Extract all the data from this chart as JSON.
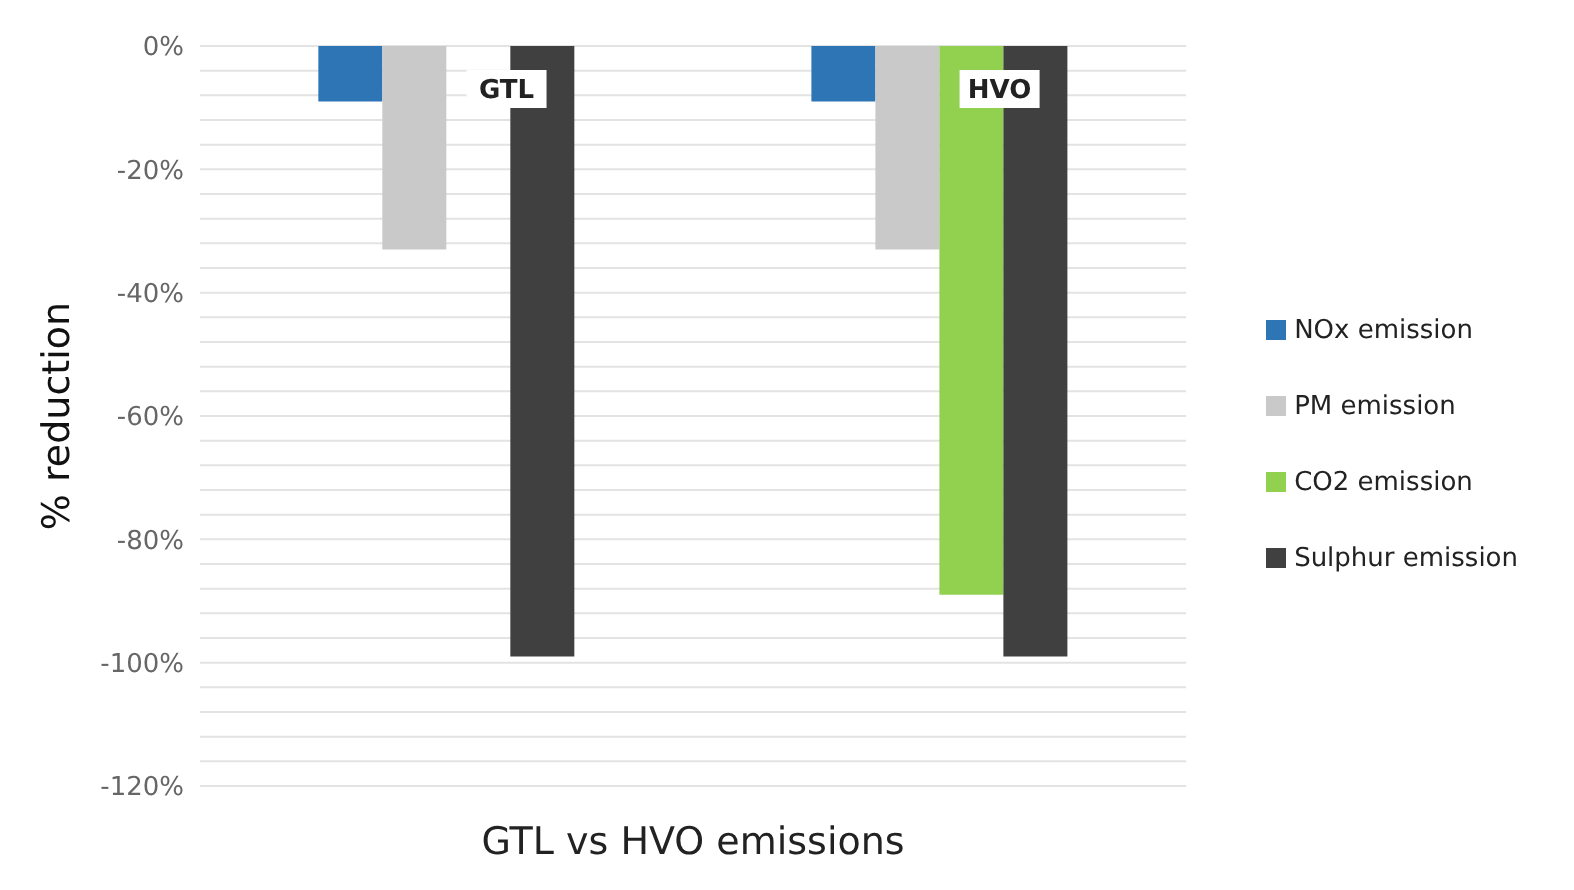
{
  "chart_data": {
    "type": "bar",
    "xlabel": "GTL vs HVO emissions",
    "ylabel": "% reduction",
    "categories": [
      "GTL",
      "HVO"
    ],
    "series": [
      {
        "name": "NOx emission",
        "color": "#2e75b6",
        "values": [
          -9,
          -9
        ]
      },
      {
        "name": "PM emission",
        "color": "#c9c9c9",
        "values": [
          -33,
          -33
        ]
      },
      {
        "name": "CO2 emission",
        "color": "#92d050",
        "values": [
          null,
          -89
        ]
      },
      {
        "name": "Sulphur emission",
        "color": "#404040",
        "values": [
          -99,
          -99
        ]
      }
    ],
    "ylim": [
      -120,
      0
    ],
    "yticks": [
      {
        "value": 0,
        "label": "0%"
      },
      {
        "value": -4,
        "label": null
      },
      {
        "value": -8,
        "label": null
      },
      {
        "value": -12,
        "label": null
      },
      {
        "value": -16,
        "label": null
      },
      {
        "value": -20,
        "label": "-20%"
      },
      {
        "value": -24,
        "label": null
      },
      {
        "value": -28,
        "label": null
      },
      {
        "value": -32,
        "label": null
      },
      {
        "value": -36,
        "label": null
      },
      {
        "value": -40,
        "label": "-40%"
      },
      {
        "value": -44,
        "label": null
      },
      {
        "value": -48,
        "label": null
      },
      {
        "value": -52,
        "label": null
      },
      {
        "value": -56,
        "label": null
      },
      {
        "value": -60,
        "label": "-60%"
      },
      {
        "value": -64,
        "label": null
      },
      {
        "value": -68,
        "label": null
      },
      {
        "value": -72,
        "label": null
      },
      {
        "value": -76,
        "label": null
      },
      {
        "value": -80,
        "label": "-80%"
      },
      {
        "value": -84,
        "label": null
      },
      {
        "value": -88,
        "label": null
      },
      {
        "value": -92,
        "label": null
      },
      {
        "value": -96,
        "label": null
      },
      {
        "value": -100,
        "label": "-100%"
      },
      {
        "value": -104,
        "label": null
      },
      {
        "value": -108,
        "label": null
      },
      {
        "value": -112,
        "label": null
      },
      {
        "value": -116,
        "label": null
      },
      {
        "value": -120,
        "label": "-120%"
      }
    ],
    "grid": "y",
    "legend": "right"
  }
}
